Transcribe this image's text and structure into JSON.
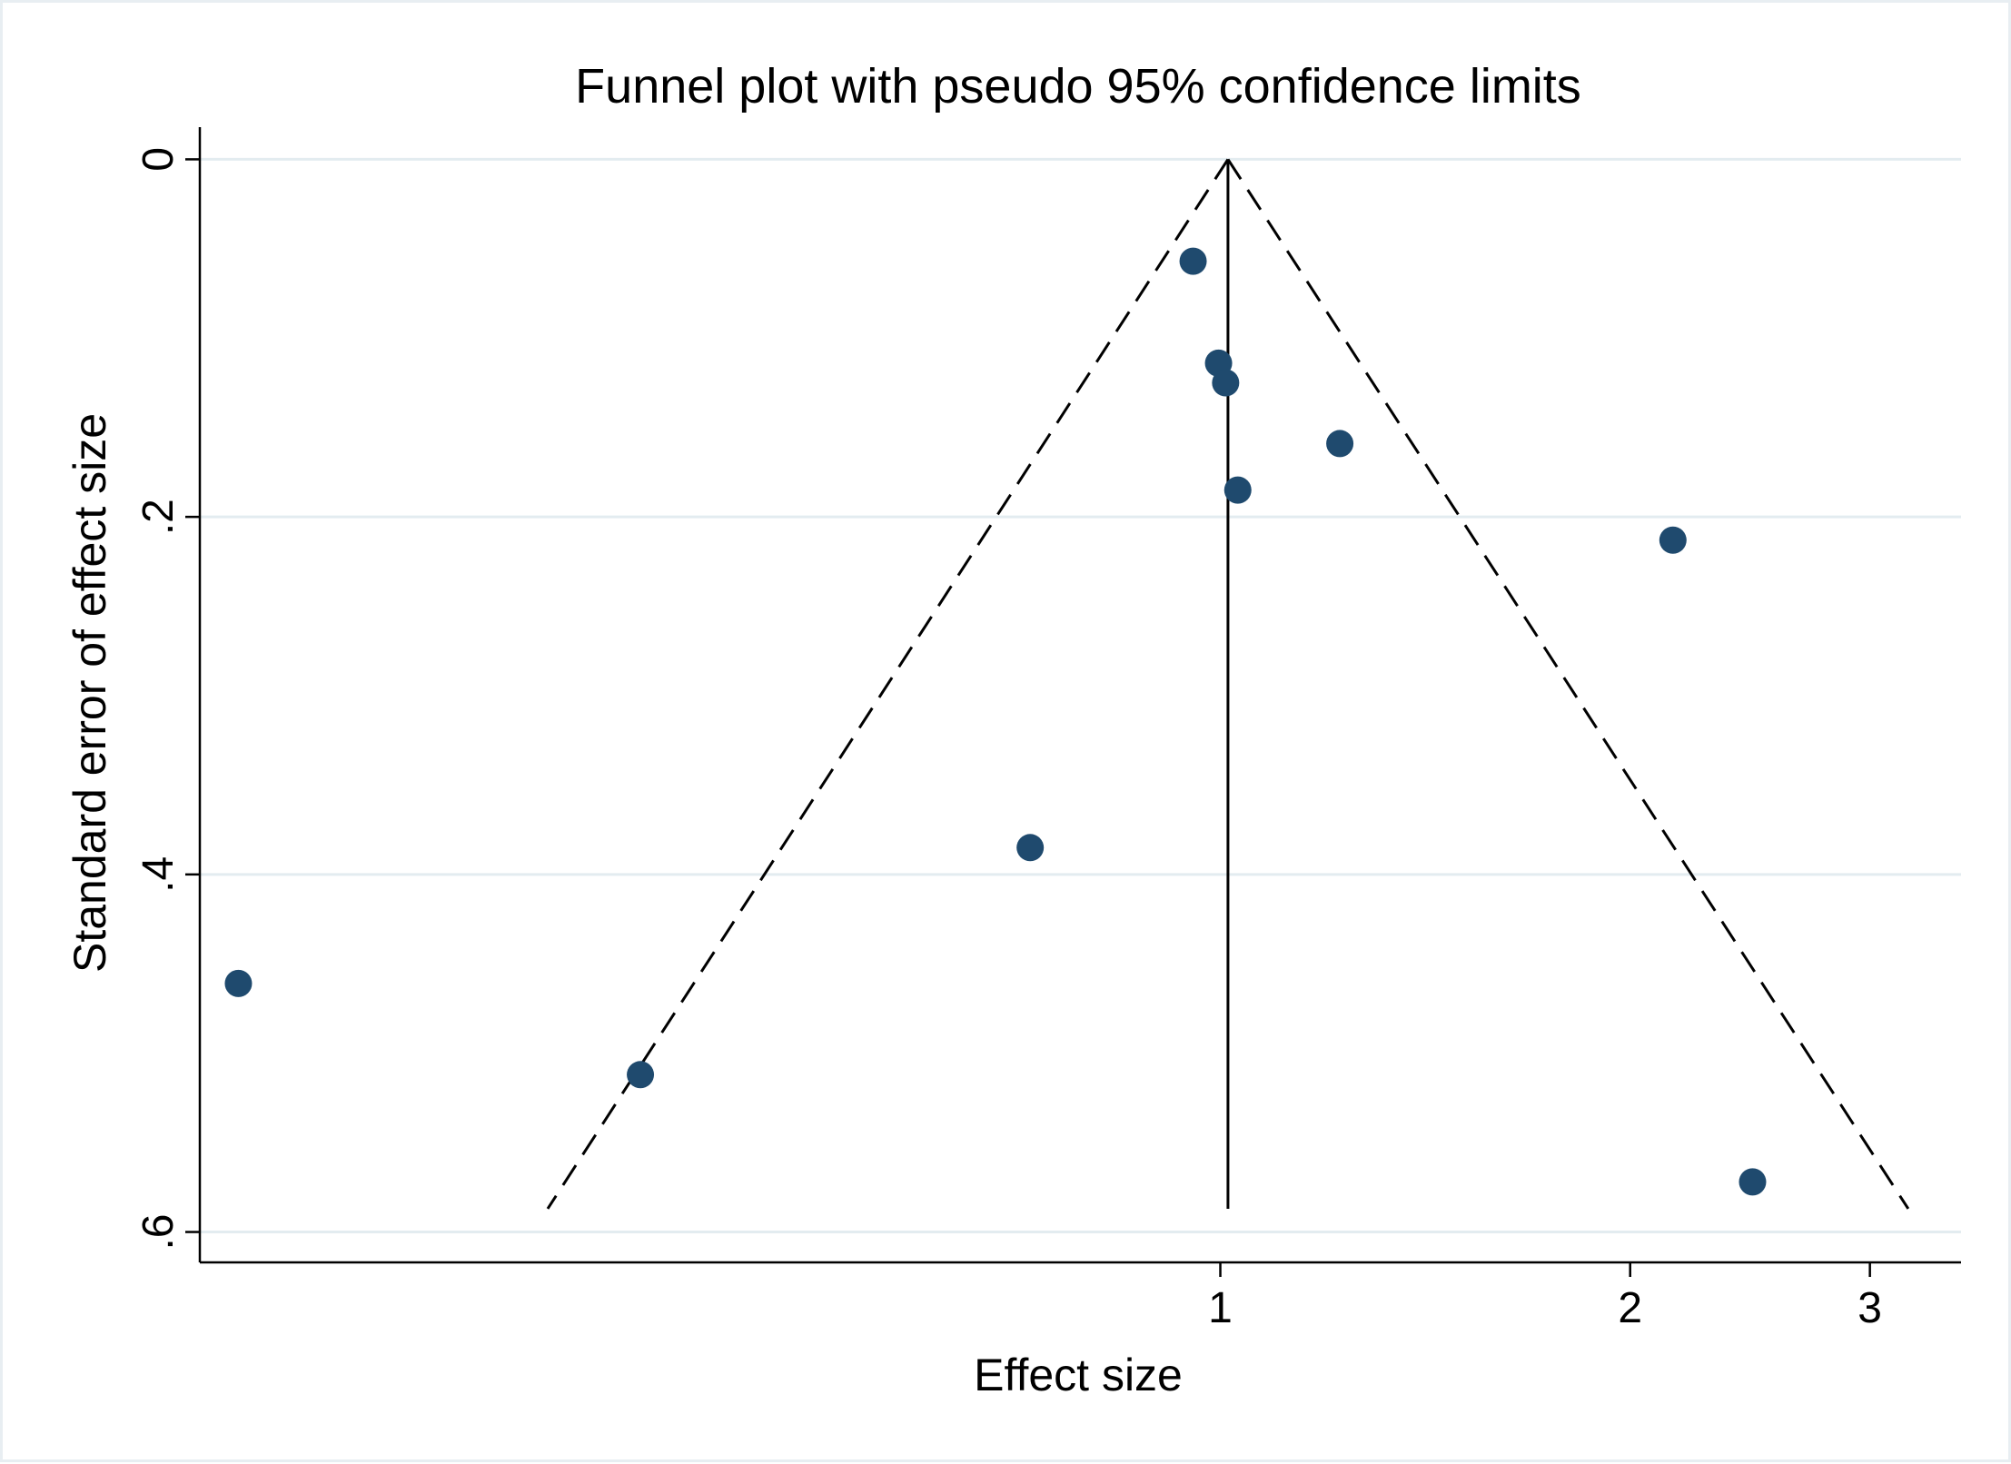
{
  "chart_data": {
    "type": "scatter",
    "title": "Funnel plot with pseudo 95% confidence limits",
    "xlabel": "Effect size",
    "ylabel": "Standard error of effect size",
    "x_scale": "log",
    "x_ticks": [
      {
        "value": 1,
        "label": "1"
      },
      {
        "value": 2,
        "label": "2"
      },
      {
        "value": 3,
        "label": "3"
      }
    ],
    "y_ticks": [
      {
        "value": 0,
        "label": "0"
      },
      {
        "value": 0.2,
        "label": ".2"
      },
      {
        "value": 0.4,
        "label": ".4"
      },
      {
        "value": 0.6,
        "label": ".6"
      }
    ],
    "xlim": [
      0.178,
      3.5
    ],
    "ylim": [
      0.617,
      -0.018
    ],
    "y_reversed": true,
    "grid": "horizontal",
    "legend": "none",
    "pooled_effect": 1.013,
    "confidence_level": 0.95,
    "funnel_se_max": 0.587,
    "colors": {
      "marker": "#1f4a6e",
      "lines": "#000000",
      "grid": "#e3ecf0",
      "frame": "#e8eef2"
    },
    "series": [
      {
        "points": [
          {
            "x": 0.955,
            "y": 0.057
          },
          {
            "x": 0.997,
            "y": 0.114
          },
          {
            "x": 1.009,
            "y": 0.125
          },
          {
            "x": 1.224,
            "y": 0.159
          },
          {
            "x": 1.03,
            "y": 0.185
          },
          {
            "x": 2.15,
            "y": 0.213
          },
          {
            "x": 0.725,
            "y": 0.385
          },
          {
            "x": 0.19,
            "y": 0.461
          },
          {
            "x": 0.375,
            "y": 0.512
          },
          {
            "x": 2.46,
            "y": 0.572
          }
        ]
      }
    ]
  }
}
